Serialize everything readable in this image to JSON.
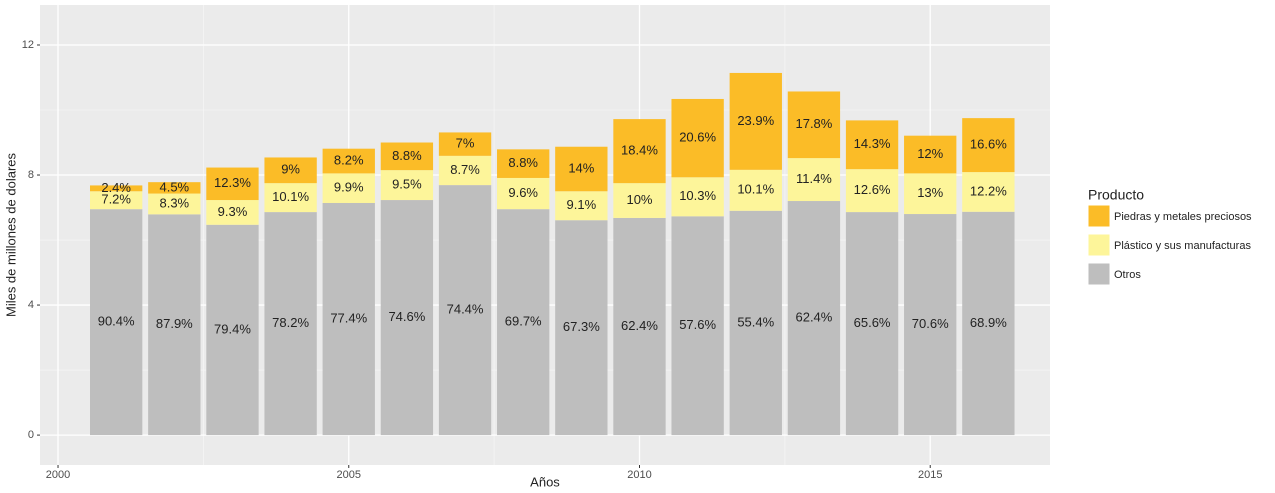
{
  "chart_data": {
    "type": "stacked_bar",
    "x_label": "Años",
    "y_label": "Miles de millones de dolares",
    "legend_title": "Producto",
    "x": [
      2001,
      2002,
      2003,
      2004,
      2005,
      2006,
      2007,
      2008,
      2009,
      2010,
      2011,
      2012,
      2013,
      2014,
      2015,
      2016
    ],
    "series": [
      {
        "name": "Otros",
        "color": "#bebebe",
        "values": [
          6.95,
          6.79,
          6.47,
          6.86,
          7.14,
          7.23,
          7.69,
          6.95,
          6.61,
          6.68,
          6.73,
          6.9,
          7.2,
          6.86,
          6.8,
          6.87
        ],
        "value_labels": [
          "90.4%",
          "87.9%",
          "79.4%",
          "78.2%",
          "77.4%",
          "74.6%",
          "74.4%",
          "69.7%",
          "67.3%",
          "62.4%",
          "57.6%",
          "55.4%",
          "62.4%",
          "65.6%",
          "70.6%",
          "68.9%"
        ]
      },
      {
        "name": "Plástico y sus manufacturas",
        "color": "#fdf59a",
        "values": [
          0.55,
          0.64,
          0.76,
          0.89,
          0.91,
          0.92,
          0.9,
          0.96,
          0.89,
          1.07,
          1.2,
          1.26,
          1.32,
          1.32,
          1.25,
          1.22
        ],
        "value_labels": [
          "7.2%",
          "8.3%",
          "9.3%",
          "10.1%",
          "9.9%",
          "9.5%",
          "8.7%",
          "9.6%",
          "9.1%",
          "10%",
          "10.3%",
          "10.1%",
          "11.4%",
          "12.6%",
          "13%",
          "12.2%"
        ]
      },
      {
        "name": "Piedras y metales preciosos",
        "color": "#fbbc27",
        "values": [
          0.18,
          0.35,
          1.0,
          0.79,
          0.76,
          0.85,
          0.72,
          0.88,
          1.37,
          1.97,
          2.41,
          2.98,
          2.05,
          1.5,
          1.16,
          1.66
        ],
        "value_labels": [
          "2.4%",
          "4.5%",
          "12.3%",
          "9%",
          "8.2%",
          "8.8%",
          "7%",
          "8.8%",
          "14%",
          "18.4%",
          "20.6%",
          "23.9%",
          "17.8%",
          "14.3%",
          "12%",
          "16.6%"
        ]
      }
    ],
    "xlim": [
      1999.69,
      2017.06
    ],
    "xticks": [
      2000,
      2005,
      2010,
      2015
    ],
    "ylim": [
      -0.92,
      13.23
    ],
    "yticks": [
      0,
      4,
      8,
      12
    ],
    "grid": true,
    "legend": "right"
  }
}
